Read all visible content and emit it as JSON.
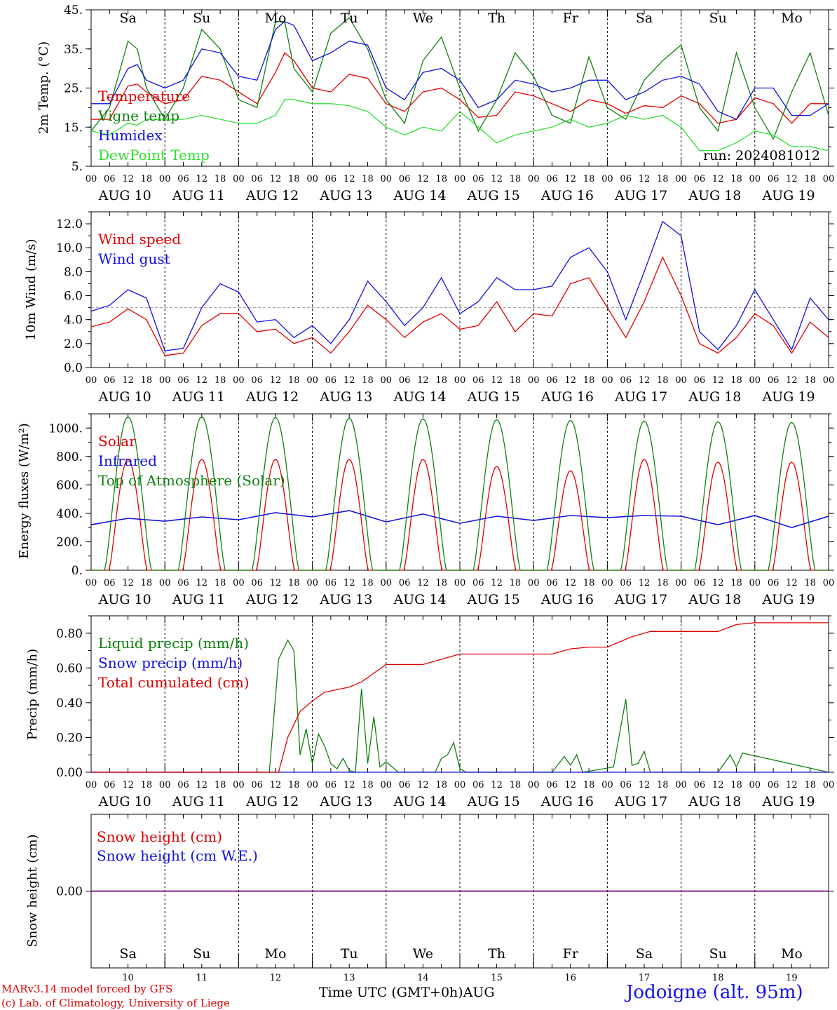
{
  "run_label": "run: 2024081012",
  "footer": {
    "line1": "MARv3.14 model forced by GFS",
    "line2": "(c) Lab. of Climatology, University of Liege",
    "xaxis_title": "Time UTC (GMT+0h)",
    "month": "AUG",
    "station": "Jodoigne (alt. 95m)"
  },
  "days": [
    {
      "abbr": "Sa",
      "label": "AUG 10",
      "num": "10",
      "weekend": true
    },
    {
      "abbr": "Su",
      "label": "AUG 11",
      "num": "11",
      "weekend": true
    },
    {
      "abbr": "Mo",
      "label": "AUG 12",
      "num": "12",
      "weekend": false
    },
    {
      "abbr": "Tu",
      "label": "AUG 13",
      "num": "13",
      "weekend": false
    },
    {
      "abbr": "We",
      "label": "AUG 14",
      "num": "14",
      "weekend": false
    },
    {
      "abbr": "Th",
      "label": "AUG 15",
      "num": "15",
      "weekend": false
    },
    {
      "abbr": "Fr",
      "label": "AUG 16",
      "num": "16",
      "weekend": false
    },
    {
      "abbr": "Sa",
      "label": "AUG 17",
      "num": "17",
      "weekend": true
    },
    {
      "abbr": "Su",
      "label": "AUG 18",
      "num": "18",
      "weekend": true
    },
    {
      "abbr": "Mo",
      "label": "AUG 19",
      "num": "19",
      "weekend": false
    }
  ],
  "hour_ticks": [
    "00",
    "06",
    "12",
    "18"
  ],
  "colors": {
    "red": "#e00000",
    "green": "#108010",
    "blue": "#1010e0",
    "lightgreen": "#30e030",
    "purple": "#800080",
    "gray": "#999999"
  },
  "chart_data": [
    {
      "type": "line",
      "ylabel": "2m Temp. (°C)",
      "ylim": [
        5,
        45
      ],
      "yticks": [
        "5.",
        "15.",
        "25.",
        "35.",
        "45."
      ],
      "time_unit": "hours since AUG 10 00 UTC",
      "series": [
        {
          "name": "Temperature",
          "color": "red",
          "x": [
            0,
            6,
            12,
            15,
            18,
            24,
            30,
            36,
            42,
            48,
            54,
            60,
            63,
            66,
            72,
            78,
            84,
            90,
            96,
            102,
            108,
            114,
            120,
            126,
            132,
            138,
            144,
            150,
            156,
            162,
            168,
            174,
            180,
            186,
            192,
            198,
            204,
            210,
            216,
            222,
            228,
            234,
            240
          ],
          "y": [
            17,
            17,
            25.5,
            26,
            24,
            21,
            22,
            28,
            27,
            24,
            21,
            29,
            34,
            32,
            25,
            24,
            28.5,
            27.5,
            21,
            19,
            24,
            25,
            22,
            17.5,
            18,
            24,
            23,
            21,
            19,
            22,
            21,
            18.5,
            20.5,
            20,
            23,
            21,
            16,
            17,
            22.5,
            21,
            16,
            21,
            21
          ]
        },
        {
          "name": "Vigne temp",
          "color": "green",
          "x": [
            0,
            6,
            12,
            15,
            18,
            24,
            30,
            36,
            42,
            48,
            54,
            60,
            63,
            66,
            72,
            78,
            84,
            90,
            96,
            102,
            108,
            114,
            120,
            126,
            132,
            138,
            144,
            150,
            156,
            162,
            168,
            174,
            180,
            186,
            192,
            198,
            204,
            210,
            216,
            222,
            228,
            234,
            240
          ],
          "y": [
            14,
            20,
            37,
            35,
            25,
            17,
            25,
            40,
            35,
            22,
            20,
            42,
            42,
            30,
            24,
            39,
            43,
            35,
            22,
            16,
            32,
            38,
            25,
            14,
            22,
            34,
            28,
            18,
            16,
            33,
            20,
            17,
            27,
            32,
            36,
            20,
            14,
            34,
            20,
            12,
            24,
            34,
            18
          ]
        },
        {
          "name": "Humidex",
          "color": "blue",
          "x": [
            0,
            6,
            12,
            15,
            18,
            24,
            30,
            36,
            42,
            48,
            54,
            60,
            63,
            66,
            72,
            78,
            84,
            90,
            96,
            102,
            108,
            114,
            120,
            126,
            132,
            138,
            144,
            150,
            156,
            162,
            168,
            174,
            180,
            186,
            192,
            198,
            204,
            210,
            216,
            222,
            228,
            234,
            240
          ],
          "y": [
            21,
            21,
            30,
            31,
            27,
            25,
            27,
            35,
            34,
            28,
            27,
            40,
            42,
            41,
            32,
            34,
            37,
            36,
            25,
            22,
            29,
            30,
            27,
            20,
            22,
            27,
            26,
            24,
            25,
            27,
            27,
            22,
            24,
            27,
            28,
            26,
            19,
            17,
            25,
            25,
            18,
            18,
            21
          ]
        },
        {
          "name": "DewPoint Temp",
          "color": "lightgreen",
          "x": [
            0,
            6,
            12,
            15,
            18,
            24,
            30,
            36,
            42,
            48,
            54,
            60,
            63,
            66,
            72,
            78,
            84,
            90,
            96,
            102,
            108,
            114,
            120,
            126,
            132,
            138,
            144,
            150,
            156,
            162,
            168,
            174,
            180,
            186,
            192,
            198,
            204,
            210,
            216,
            222,
            228,
            234,
            240
          ],
          "y": [
            14,
            13,
            16,
            15.5,
            17,
            17,
            17,
            18,
            17,
            16,
            16,
            18,
            22,
            22,
            21,
            21,
            20.5,
            19,
            15,
            13,
            15,
            14,
            19,
            15,
            11,
            13,
            14,
            15,
            17,
            15,
            16,
            18,
            17,
            18,
            15,
            9,
            9,
            11,
            14,
            13,
            10,
            10,
            9
          ]
        }
      ],
      "annotations": [
        "run: 2024081012"
      ]
    },
    {
      "type": "line",
      "ylabel": "10m Wind (m/s)",
      "ylim": [
        0,
        13
      ],
      "yticks": [
        "0.0",
        "2.0",
        "4.0",
        "6.0",
        "8.0",
        "10.0",
        "12.0"
      ],
      "reference_line": 5,
      "time_unit": "hours since AUG 10 00 UTC",
      "series": [
        {
          "name": "Wind speed",
          "color": "red",
          "x": [
            0,
            6,
            12,
            18,
            24,
            30,
            36,
            42,
            48,
            54,
            60,
            66,
            72,
            78,
            84,
            90,
            96,
            102,
            108,
            114,
            120,
            126,
            132,
            138,
            144,
            150,
            156,
            162,
            168,
            174,
            180,
            186,
            192,
            198,
            204,
            210,
            216,
            222,
            228,
            234,
            240
          ],
          "y": [
            3.4,
            3.8,
            4.9,
            4.0,
            1.0,
            1.2,
            3.5,
            4.5,
            4.5,
            3.0,
            3.2,
            2.0,
            2.5,
            1.2,
            3.0,
            5.2,
            4.0,
            2.5,
            3.8,
            4.5,
            3.2,
            3.5,
            5.5,
            3.0,
            4.5,
            4.3,
            7.0,
            7.5,
            5.0,
            2.5,
            5.5,
            9.2,
            6.0,
            2.0,
            1.2,
            2.5,
            4.5,
            3.5,
            1.2,
            3.8,
            2.5
          ]
        },
        {
          "name": "Wind gust",
          "color": "blue",
          "x": [
            0,
            6,
            12,
            18,
            24,
            30,
            36,
            42,
            48,
            54,
            60,
            66,
            72,
            78,
            84,
            90,
            96,
            102,
            108,
            114,
            120,
            126,
            132,
            138,
            144,
            150,
            156,
            162,
            168,
            174,
            180,
            186,
            192,
            198,
            204,
            210,
            216,
            222,
            228,
            234,
            240
          ],
          "y": [
            4.7,
            5.2,
            6.5,
            5.8,
            1.4,
            1.6,
            5.0,
            7.0,
            6.3,
            3.8,
            4.0,
            2.5,
            3.5,
            2.0,
            4.0,
            7.2,
            5.5,
            3.5,
            5.0,
            7.5,
            4.5,
            5.5,
            7.5,
            6.5,
            6.5,
            6.8,
            9.2,
            10.0,
            8.0,
            4.0,
            8.0,
            12.2,
            11.0,
            3.0,
            1.5,
            3.5,
            6.5,
            4.0,
            1.5,
            5.8,
            4.0
          ]
        }
      ]
    },
    {
      "type": "line",
      "ylabel": "Energy fluxes (W/m²)",
      "ylim": [
        0,
        1100
      ],
      "yticks": [
        "0.",
        "200.",
        "400.",
        "600.",
        "800.",
        "1000."
      ],
      "time_unit": "hours since AUG 10 00 UTC",
      "series": [
        {
          "name": "Solar",
          "color": "red",
          "daily_peaks": [
            780,
            780,
            780,
            780,
            780,
            730,
            700,
            780,
            760,
            760
          ]
        },
        {
          "name": "Infrared",
          "color": "blue",
          "x": [
            0,
            12,
            24,
            36,
            48,
            60,
            72,
            84,
            96,
            108,
            120,
            132,
            144,
            156,
            168,
            180,
            192,
            204,
            216,
            228,
            240
          ],
          "y": [
            320,
            365,
            345,
            375,
            355,
            405,
            375,
            420,
            340,
            395,
            330,
            380,
            350,
            385,
            370,
            385,
            380,
            320,
            385,
            300,
            380
          ]
        },
        {
          "name": "Top of Atmosphere (Solar)",
          "color": "green",
          "daily_peaks": [
            1080,
            1080,
            1075,
            1070,
            1065,
            1060,
            1055,
            1050,
            1045,
            1040
          ]
        }
      ]
    },
    {
      "type": "line",
      "ylabel": "Precip (mm/h)",
      "ylim": [
        0,
        0.9
      ],
      "yticks": [
        "0.00",
        "0.20",
        "0.40",
        "0.60",
        "0.80"
      ],
      "time_unit": "hours since AUG 10 00 UTC",
      "series": [
        {
          "name": "Liquid precip (mm/h)",
          "color": "green",
          "x": [
            0,
            58,
            61,
            64,
            66,
            68,
            70,
            72,
            74,
            76,
            78,
            80,
            82,
            84,
            86,
            88,
            90,
            92,
            94,
            96,
            100,
            112,
            114,
            116,
            118,
            120,
            122,
            150,
            154,
            156,
            158,
            160,
            170,
            174,
            176,
            178,
            180,
            182,
            204,
            208,
            210,
            212,
            240
          ],
          "y": [
            0,
            0,
            0.65,
            0.76,
            0.7,
            0.1,
            0.25,
            0.05,
            0.22,
            0.15,
            0.05,
            0.02,
            0.08,
            0.01,
            0,
            0.48,
            0.05,
            0.32,
            0.03,
            0.06,
            0,
            0,
            0.08,
            0.1,
            0.17,
            0.02,
            0,
            0,
            0.09,
            0.04,
            0.1,
            0,
            0.03,
            0.42,
            0.04,
            0.05,
            0.12,
            0,
            0,
            0.1,
            0.03,
            0.11,
            0
          ]
        },
        {
          "name": "Snow precip (mm/h)",
          "color": "blue",
          "x": [
            0,
            240
          ],
          "y": [
            0,
            0
          ]
        },
        {
          "name": "Total cumulated (cm)",
          "color": "red",
          "x": [
            0,
            61,
            64,
            68,
            72,
            76,
            84,
            88,
            96,
            108,
            120,
            150,
            156,
            162,
            168,
            176,
            182,
            192,
            204,
            210,
            216,
            240
          ],
          "y": [
            0,
            0,
            0.2,
            0.35,
            0.41,
            0.46,
            0.49,
            0.52,
            0.62,
            0.62,
            0.68,
            0.68,
            0.71,
            0.72,
            0.72,
            0.78,
            0.81,
            0.81,
            0.81,
            0.85,
            0.86,
            0.86
          ]
        }
      ]
    },
    {
      "type": "line",
      "ylabel": "Snow height (cm)",
      "ylim": [
        -1,
        1
      ],
      "yticks": [
        "0.00"
      ],
      "time_unit": "hours since AUG 10 00 UTC",
      "series": [
        {
          "name": "Snow height (cm)",
          "color": "red",
          "x": [
            0,
            240
          ],
          "y": [
            0,
            0
          ]
        },
        {
          "name": "Snow height (cm W.E.)",
          "color": "blue",
          "x": [
            0,
            240
          ],
          "y": [
            0,
            0
          ]
        }
      ]
    }
  ]
}
